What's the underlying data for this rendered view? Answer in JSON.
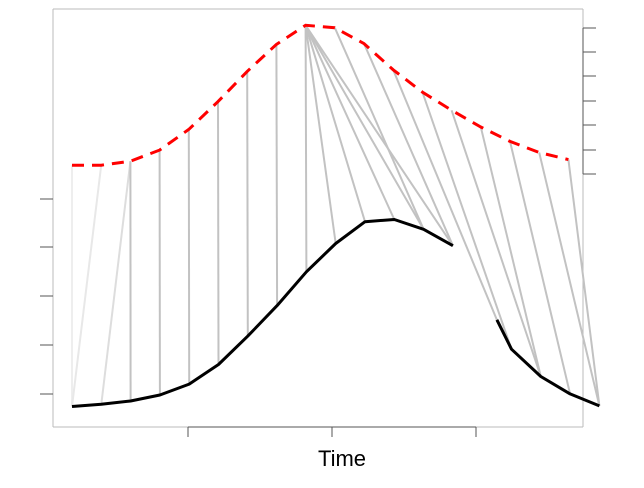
{
  "chart_data": {
    "type": "line",
    "xlabel": "Time",
    "x": [
      1,
      2,
      3,
      4,
      5,
      6,
      7,
      8,
      9,
      10,
      11,
      12,
      13,
      14,
      15,
      16,
      17,
      18
    ],
    "series": [
      {
        "role": "reference",
        "style": "dashed",
        "color": "#ff0000",
        "values": [
          0.1,
          0.1,
          0.6,
          2.0,
          4.6,
          8.1,
          11.9,
          15.3,
          17.7,
          17.4,
          15.4,
          12.1,
          9.3,
          7.0,
          4.9,
          3.1,
          1.7,
          0.8
        ]
      },
      {
        "role": "query",
        "style": "solid",
        "color": "#000000",
        "values": [
          0.05,
          0.25,
          0.55,
          1.1,
          2.1,
          3.9,
          6.5,
          9.3,
          12.4,
          15.0,
          17.0,
          17.2,
          16.3,
          14.8,
          null,
          8.0,
          5.3,
          2.8,
          1.2,
          0.1
        ],
        "x": [
          1,
          2,
          3,
          4,
          5,
          6,
          7,
          8,
          9,
          10,
          11,
          12,
          13,
          14,
          15,
          15.5,
          16,
          17,
          18,
          19
        ]
      }
    ],
    "alignment": [
      [
        1,
        1
      ],
      [
        2,
        1
      ],
      [
        3,
        2
      ],
      [
        4,
        3
      ],
      [
        5,
        4
      ],
      [
        6,
        5
      ],
      [
        7,
        6
      ],
      [
        8,
        7
      ],
      [
        9,
        8
      ],
      [
        10,
        9
      ],
      [
        11,
        9
      ],
      [
        12,
        9
      ],
      [
        13,
        9
      ],
      [
        14,
        9
      ],
      [
        15,
        9
      ],
      [
        16,
        9
      ],
      [
        17,
        9
      ],
      [
        18,
        11
      ],
      [
        19,
        12
      ],
      [
        20,
        13
      ],
      [
        21,
        14
      ],
      [
        22,
        15
      ],
      [
        23,
        16
      ],
      [
        24,
        17
      ],
      [
        25,
        18
      ]
    ],
    "grid": false
  }
}
